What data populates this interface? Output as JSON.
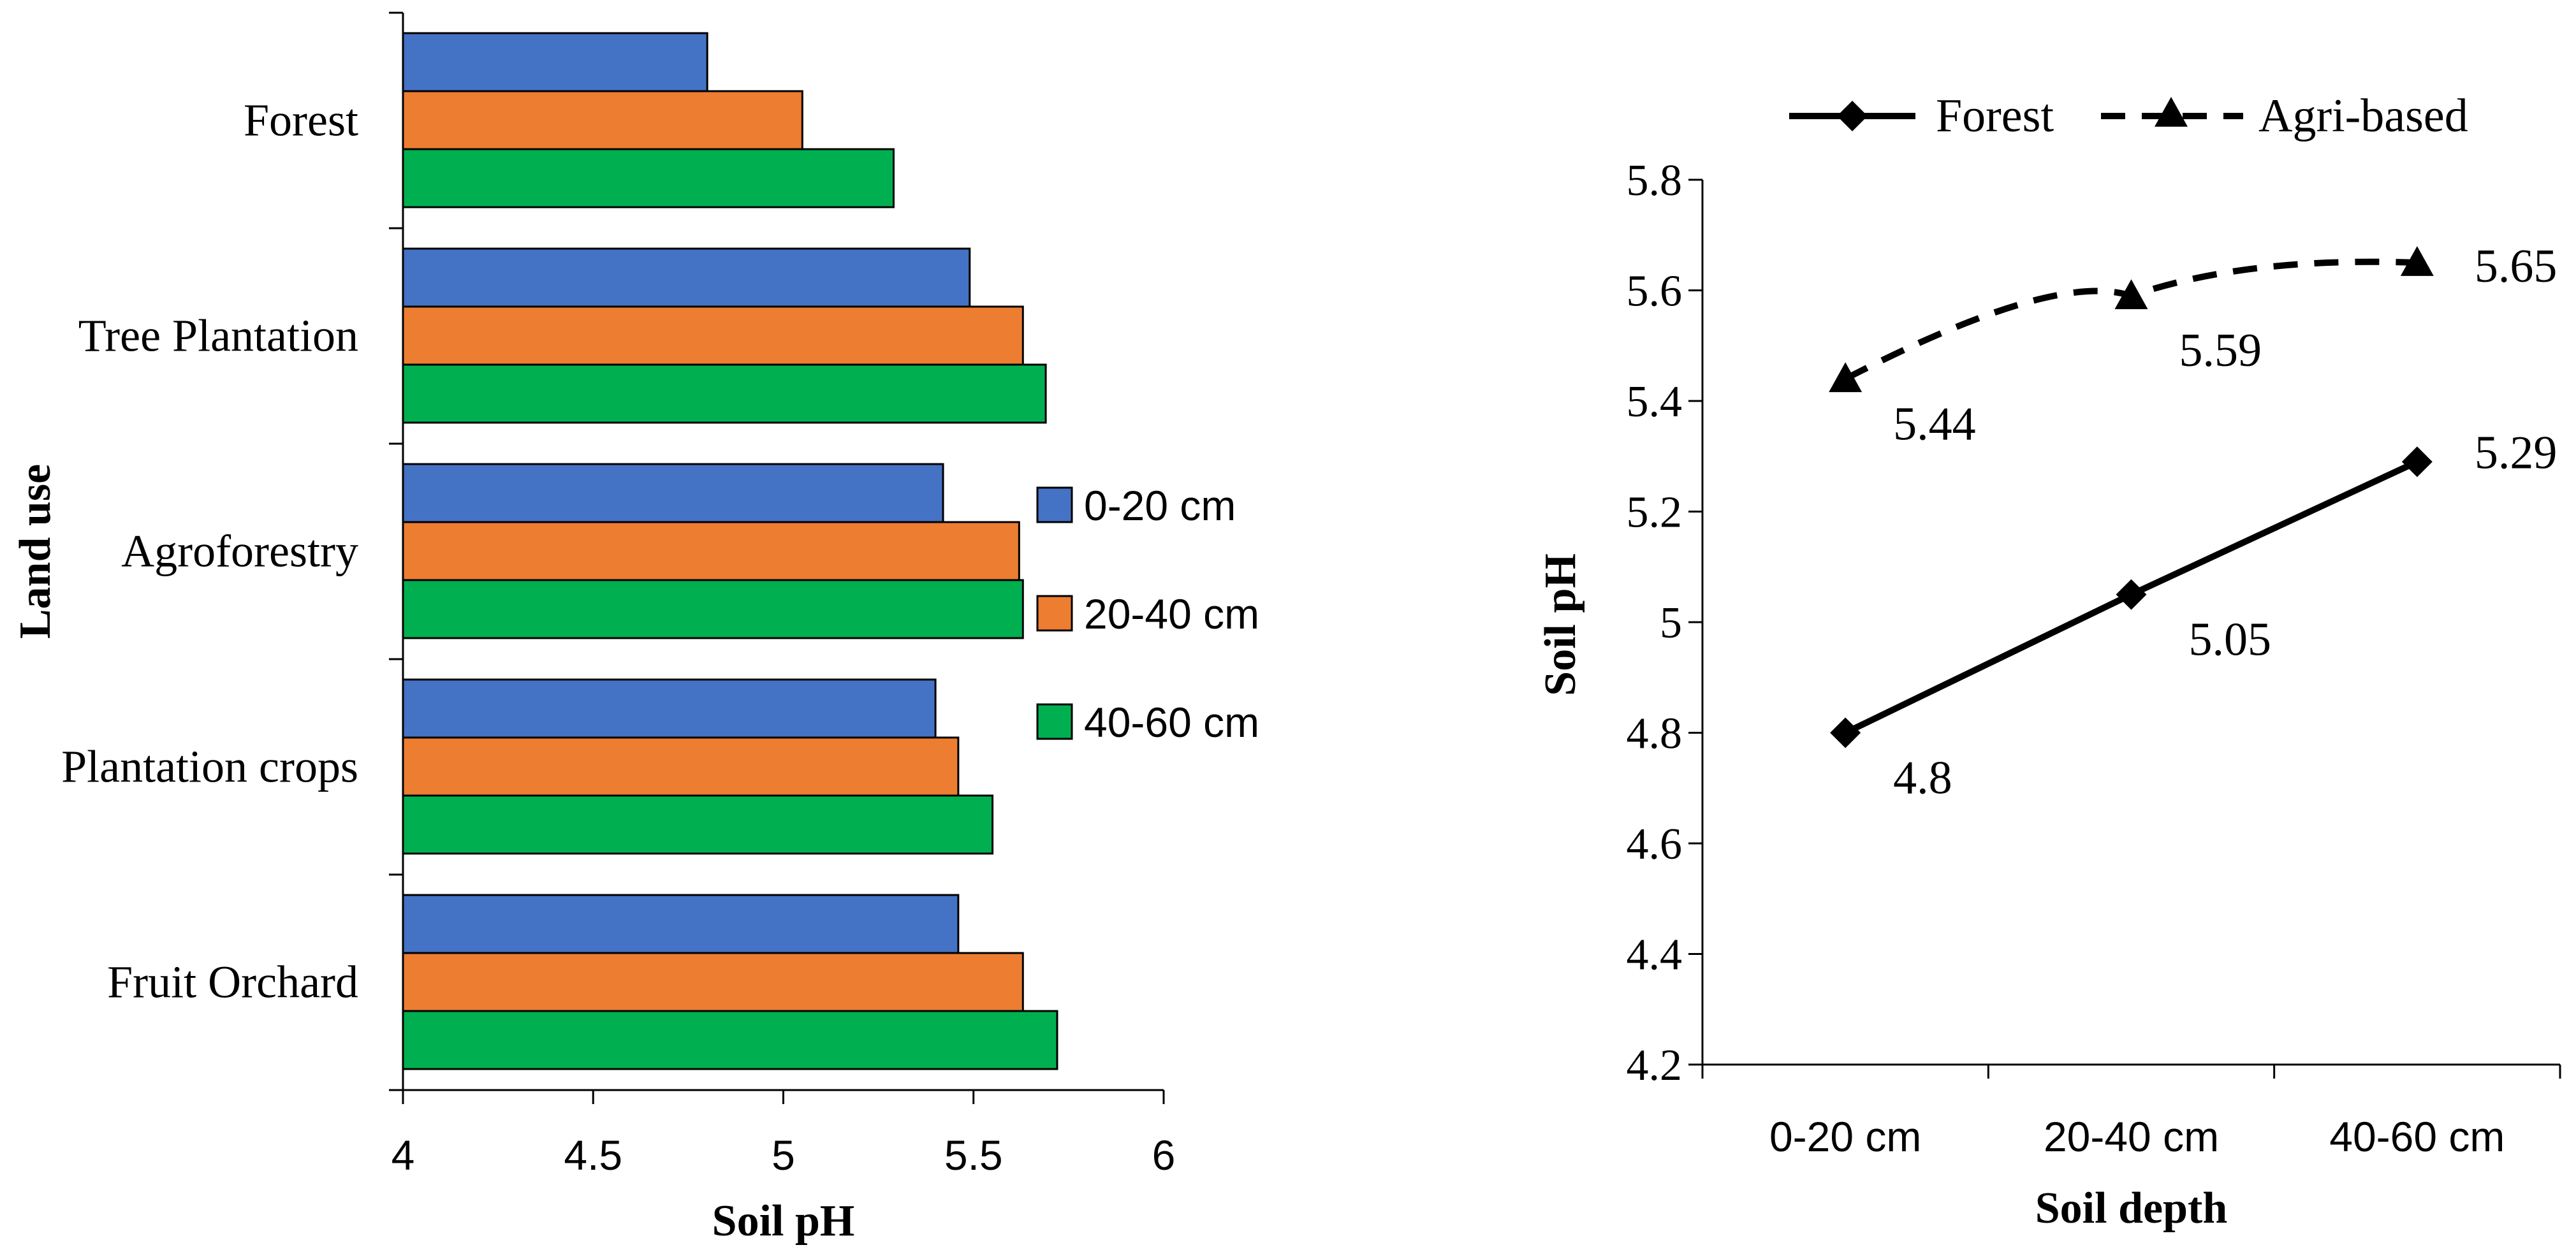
{
  "chart_data": [
    {
      "type": "bar",
      "orientation": "horizontal",
      "xlabel": "Soil pH",
      "ylabel": "Land use",
      "xlim": [
        4,
        6
      ],
      "xticks": [
        "4",
        "4.5",
        "5",
        "5.5",
        "6"
      ],
      "categories": [
        "Forest",
        "Tree Plantation",
        "Agroforestry",
        "Plantation crops",
        "Fruit Orchard"
      ],
      "series": [
        {
          "name": "0-20 cm",
          "color": "#4472C4",
          "values": [
            4.8,
            5.49,
            5.42,
            5.4,
            5.46
          ]
        },
        {
          "name": "20-40 cm",
          "color": "#ED7D31",
          "values": [
            5.05,
            5.63,
            5.62,
            5.46,
            5.63
          ]
        },
        {
          "name": "40-60 cm",
          "color": "#00B050",
          "values": [
            5.29,
            5.69,
            5.63,
            5.55,
            5.72
          ]
        }
      ],
      "legend": "right"
    },
    {
      "type": "line",
      "xlabel": "Soil depth",
      "ylabel": "Soil pH",
      "categories": [
        "0-20 cm",
        "20-40 cm",
        "40-60 cm"
      ],
      "ylim": [
        4.2,
        5.8
      ],
      "yticks": [
        "4.2",
        "4.4",
        "4.6",
        "4.8",
        "5",
        "5.2",
        "5.4",
        "5.6",
        "5.8"
      ],
      "series": [
        {
          "name": "Forest",
          "style": "solid",
          "marker": "diamond",
          "color": "#000000",
          "values": [
            4.8,
            5.05,
            5.29
          ],
          "labels": [
            "4.8",
            "5.05",
            "5.29"
          ]
        },
        {
          "name": "Agri-based",
          "style": "dashed",
          "marker": "triangle",
          "color": "#000000",
          "values": [
            5.44,
            5.59,
            5.65
          ],
          "labels": [
            "5.44",
            "5.59",
            "5.65"
          ]
        }
      ],
      "legend": "top"
    }
  ]
}
